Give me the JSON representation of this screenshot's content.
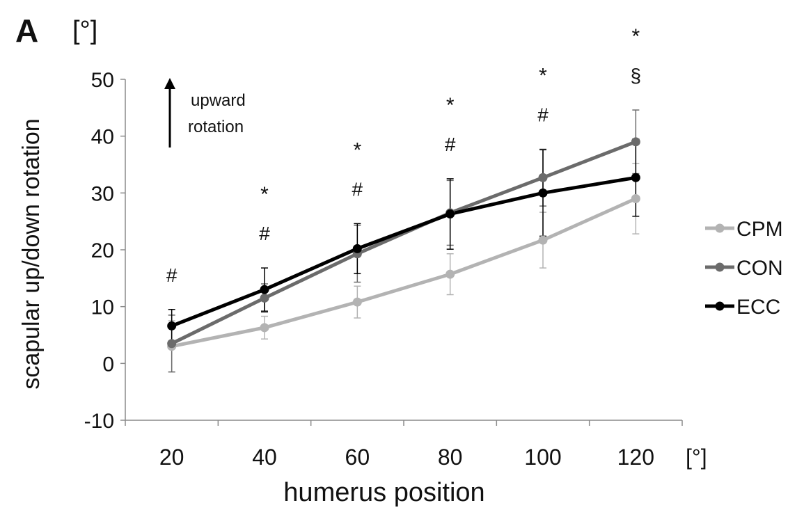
{
  "panel_label": "A",
  "chart_data": {
    "type": "line",
    "ylabel": "scapular up/down  rotation",
    "ylabel_unit": "[°]",
    "xlabel": "humerus position",
    "xlabel_unit": "[°]",
    "x": [
      20,
      40,
      60,
      80,
      100,
      120
    ],
    "categories": [
      "20",
      "40",
      "60",
      "80",
      "100",
      "120"
    ],
    "ylim": [
      -10,
      50
    ],
    "yticks": [
      -10,
      0,
      10,
      20,
      30,
      40,
      50
    ],
    "ytick_labels": [
      "-10",
      "0",
      "10",
      "20",
      "30",
      "40",
      "50"
    ],
    "grid": false,
    "legend_position": "right",
    "annotation": {
      "text_line1": "upward",
      "text_line2": "rotation",
      "arrow": "up"
    },
    "series": [
      {
        "name": "CPM",
        "color": "#b3b3b3",
        "values": [
          3.0,
          6.3,
          10.8,
          15.7,
          21.7,
          29.0
        ],
        "err": [
          4.5,
          2.0,
          2.8,
          3.6,
          4.9,
          6.2
        ]
      },
      {
        "name": "CON",
        "color": "#6b6b6b",
        "values": [
          3.5,
          11.5,
          19.3,
          26.5,
          32.7,
          39.0
        ],
        "err": [
          5.0,
          2.5,
          5.0,
          5.7,
          5.0,
          5.6
        ]
      },
      {
        "name": "ECC",
        "color": "#000000",
        "values": [
          6.6,
          13.0,
          20.2,
          26.3,
          30.0,
          32.7
        ],
        "err": [
          2.9,
          3.8,
          4.4,
          6.2,
          7.6,
          6.8
        ]
      }
    ],
    "significance": [
      {
        "x": 20,
        "marks": [
          "#"
        ]
      },
      {
        "x": 40,
        "marks": [
          "*",
          "#"
        ]
      },
      {
        "x": 60,
        "marks": [
          "*",
          "#"
        ]
      },
      {
        "x": 80,
        "marks": [
          "*",
          "#"
        ]
      },
      {
        "x": 100,
        "marks": [
          "*",
          "#"
        ]
      },
      {
        "x": 120,
        "marks": [
          "*",
          "§"
        ]
      }
    ]
  }
}
